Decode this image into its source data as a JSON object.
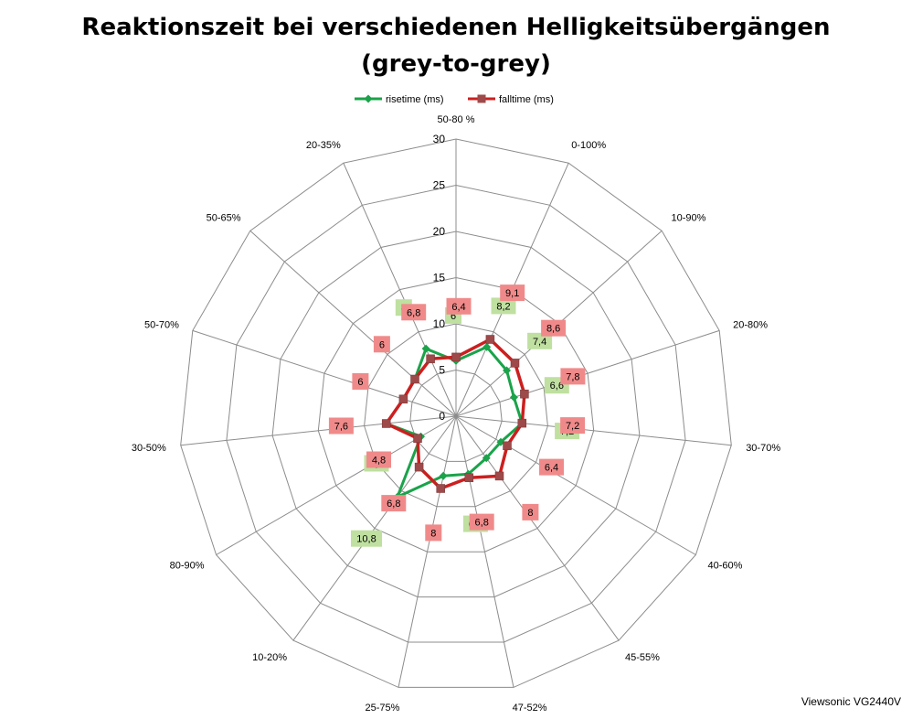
{
  "chart_data": {
    "type": "radar",
    "title_line1": "Reaktionszeit bei verschiedenen Helligkeitsübergängen",
    "title_line2": "(grey-to-grey)",
    "categories": [
      "50-80 %",
      "0-100%",
      "10-90%",
      "20-80%",
      "30-70%",
      "40-60%",
      "45-55%",
      "47-52%",
      "25-75%",
      "10-20%",
      "80-90%",
      "30-50%",
      "50-70%",
      "50-65%",
      "20-35%"
    ],
    "axis_labels": [
      "50-80 %",
      "0-100%",
      "10-90%",
      "20-80%",
      "30-70%",
      "40-60%",
      "45-55%",
      "47-52%",
      "25-75%",
      "10-20%",
      "80-90%",
      "30-50%",
      "50-70%",
      "50-65%",
      "20-35%"
    ],
    "radial_ticks": [
      "0",
      "5",
      "10",
      "15",
      "20",
      "25",
      "30"
    ],
    "rmin": 0,
    "rmax": 30,
    "grid": true,
    "legend_position": "top",
    "series": [
      {
        "name": "risetime (ms)",
        "color": "#1aa34a",
        "label_color": "#bfe0a0",
        "marker": "diamond",
        "values": [
          6,
          8.2,
          7.4,
          6.6,
          7.2,
          5.6,
          5.6,
          6.4,
          6.6,
          10.8,
          4.4,
          7.6,
          6,
          6,
          8
        ],
        "value_labels": [
          "6",
          "8,2",
          "7,4",
          "6,6",
          "7,2",
          "",
          "",
          "6,4",
          "",
          "10,8",
          "4,4",
          "",
          "",
          "",
          "8"
        ]
      },
      {
        "name": "falltime (ms)",
        "color": "#cc1f1f",
        "label_color": "#f08a8a",
        "marker": "square",
        "values": [
          6.4,
          9.1,
          8.6,
          7.8,
          7.2,
          6.4,
          8,
          6.8,
          8,
          6.8,
          4.8,
          7.6,
          6,
          6,
          6.8
        ],
        "value_labels": [
          "6,4",
          "9,1",
          "8,6",
          "7,8",
          "7,2",
          "6,4",
          "8",
          "6,8",
          "8",
          "6,8",
          "4,8",
          "7,6",
          "6",
          "6",
          "6,8"
        ]
      }
    ]
  },
  "footer": "Viewsonic VG2440V"
}
